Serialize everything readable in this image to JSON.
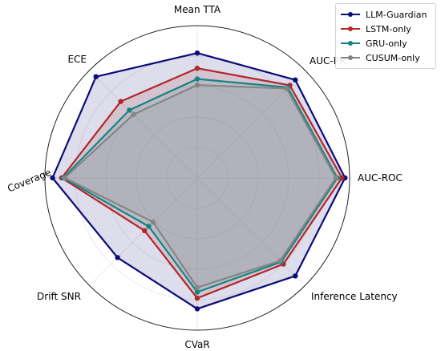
{
  "chart_data": {
    "type": "radar",
    "axes": [
      "Mean TTA",
      "AUC-PR",
      "AUC-ROC",
      "Inference Latency",
      "CVaR",
      "Drift SNR",
      "Coverage",
      "ECE"
    ],
    "range": [
      0,
      1
    ],
    "grid": true,
    "legend_position": "top-right",
    "series": [
      {
        "name": "LLM-Guardian",
        "color": "#0b0b7a",
        "values": [
          0.82,
          0.91,
          0.97,
          0.91,
          0.86,
          0.74,
          0.95,
          0.94
        ]
      },
      {
        "name": "LSTM-only",
        "color": "#b0282a",
        "values": [
          0.72,
          0.86,
          0.95,
          0.8,
          0.79,
          0.49,
          0.89,
          0.71
        ]
      },
      {
        "name": "GRU-only",
        "color": "#128584",
        "values": [
          0.65,
          0.84,
          0.92,
          0.78,
          0.75,
          0.45,
          0.88,
          0.63
        ]
      },
      {
        "name": "CUSUM-only",
        "color": "#858585",
        "values": [
          0.61,
          0.83,
          0.91,
          0.77,
          0.72,
          0.41,
          0.87,
          0.59
        ]
      }
    ]
  }
}
